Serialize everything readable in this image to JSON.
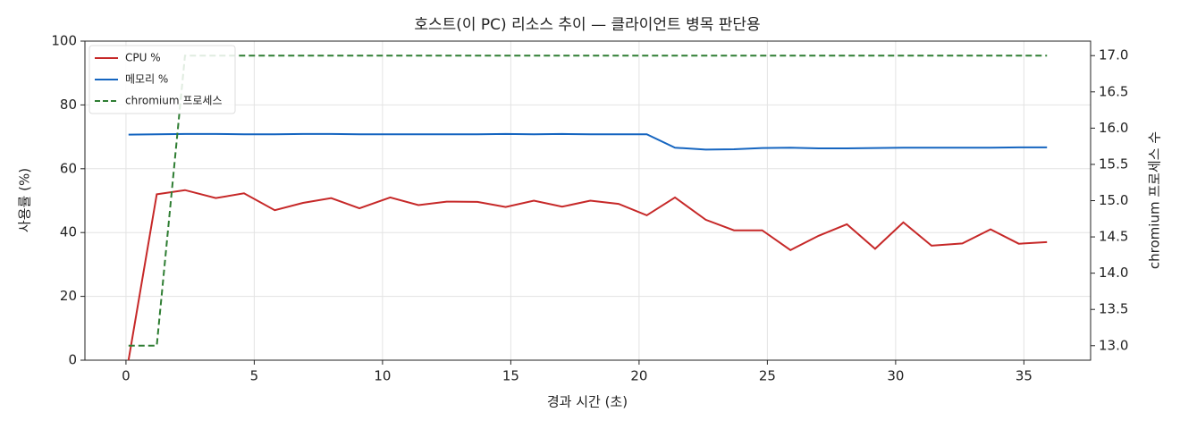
{
  "chart_data": {
    "type": "line",
    "title": "호스트(이 PC) 리소스 추이 — 클라이언트 병목 판단용",
    "x_label": "경과 시간 (초)",
    "y_label": "사용률 (%)",
    "y2_label": "chromium 프로세스 수",
    "x": [
      0.1,
      1.2,
      2.3,
      3.5,
      4.6,
      5.8,
      6.9,
      8.0,
      9.1,
      10.3,
      11.4,
      12.5,
      13.7,
      14.8,
      15.9,
      17.0,
      18.1,
      19.2,
      20.3,
      21.4,
      22.6,
      23.7,
      24.8,
      25.9,
      27.0,
      28.1,
      29.2,
      30.3,
      31.4,
      32.6,
      33.7,
      34.8,
      35.9
    ],
    "series": [
      {
        "name": "CPU %",
        "color": "#c62828",
        "linestyle": "solid",
        "values": [
          0,
          52,
          53.3,
          50.8,
          52.3,
          47,
          49.3,
          50.8,
          47.6,
          51,
          48.6,
          49.7,
          49.6,
          48,
          50,
          48.1,
          50,
          49,
          45.4,
          51,
          44,
          40.7,
          40.7,
          34.5,
          39,
          42.6,
          34.9,
          43.2,
          35.9,
          36.6,
          41,
          36.5,
          37
        ]
      },
      {
        "name": "메모리 %",
        "color": "#1565c0",
        "linestyle": "solid",
        "values": [
          70.7,
          70.8,
          70.9,
          70.9,
          70.8,
          70.8,
          70.9,
          70.9,
          70.8,
          70.8,
          70.8,
          70.8,
          70.8,
          70.9,
          70.8,
          70.9,
          70.8,
          70.8,
          70.8,
          66.6,
          66,
          66.1,
          66.5,
          66.6,
          66.4,
          66.4,
          66.5,
          66.6,
          66.6,
          66.6,
          66.6,
          66.7,
          66.7
        ]
      },
      {
        "name": "chromium 프로세스",
        "color": "#2e7d32",
        "linestyle": "dashed",
        "axis": "y2",
        "values": [
          13,
          13,
          17,
          17,
          17,
          17,
          17,
          17,
          17,
          17,
          17,
          17,
          17,
          17,
          17,
          17,
          17,
          17,
          17,
          17,
          17,
          17,
          17,
          17,
          17,
          17,
          17,
          17,
          17,
          17,
          17,
          17,
          17
        ]
      }
    ],
    "xlim": [
      -1.6,
      37.6
    ],
    "xticks": [
      0,
      5,
      10,
      15,
      20,
      25,
      30,
      35
    ],
    "ylim": [
      0,
      100
    ],
    "yticks": [
      0,
      20,
      40,
      60,
      80,
      100
    ],
    "y2lim": [
      12.8,
      17.2
    ],
    "y2ticks": [
      {
        "value": 13,
        "label": "13.0"
      },
      13.5,
      {
        "value": 14,
        "label": "14.0"
      },
      14.5,
      {
        "value": 15,
        "label": "15.0"
      },
      15.5,
      {
        "value": 16,
        "label": "16.0"
      },
      16.5,
      {
        "value": 17,
        "label": "17.0"
      }
    ],
    "grid": true,
    "legend": "upper left"
  }
}
